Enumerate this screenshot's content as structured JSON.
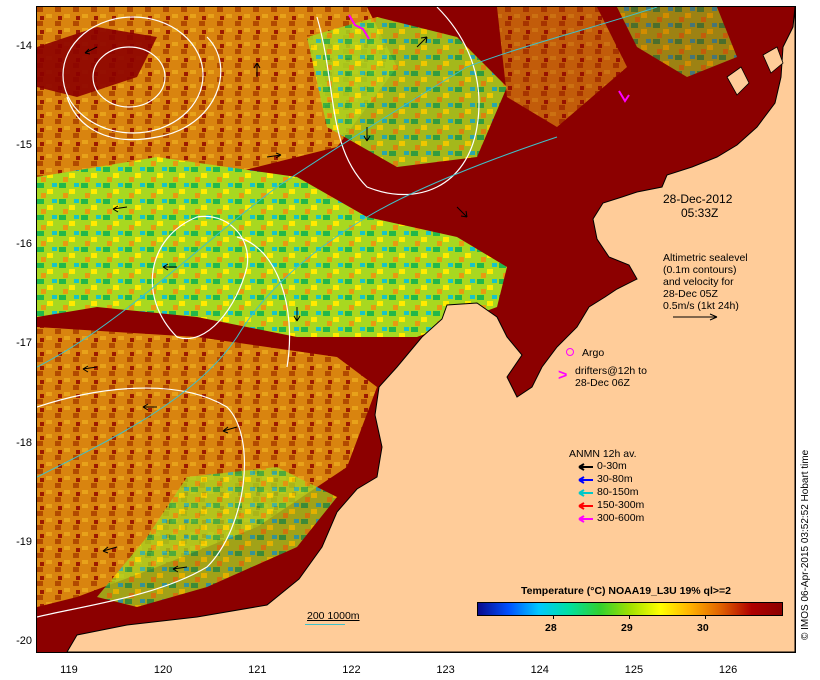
{
  "map": {
    "lat_ticks": [
      "-14",
      "-15",
      "-16",
      "-17",
      "-18",
      "-19",
      "-20"
    ],
    "lon_ticks": [
      "119",
      "120",
      "121",
      "122",
      "123",
      "124",
      "125",
      "126"
    ],
    "lat_range": [
      -20.1,
      -13.6
    ],
    "lon_range": [
      118.65,
      126.7
    ],
    "colors": {
      "land": "#ffcc99",
      "frame": "#000000",
      "contour": "#ffffff",
      "isobath": "#3fc1c9",
      "argo": "#ff00ff",
      "drifter": "#ff00ff"
    }
  },
  "annotations": {
    "date": "28-Dec-2012",
    "time": "05:33Z",
    "altimetry_lines": [
      "Altimetric sealevel",
      "(0.1m contours)",
      "and velocity for",
      "28-Dec 05Z",
      "0.5m/s (1kt 24h)"
    ],
    "argo_label": "Argo",
    "drifters_lines": [
      "drifters@12h to",
      "28-Dec 06Z"
    ],
    "anmn_title": "ANMN 12h av.",
    "anmn_items": [
      {
        "label": "0-30m",
        "color": "#000000"
      },
      {
        "label": "30-80m",
        "color": "#0000ff"
      },
      {
        "label": "80-150m",
        "color": "#00c8c8"
      },
      {
        "label": "150-300m",
        "color": "#ff0000"
      },
      {
        "label": "300-600m",
        "color": "#ff00ff"
      }
    ],
    "isobath_label": "200  1000m",
    "side_credit": "© IMOS 06-Apr-2015 03:52:52 Hobart time"
  },
  "colorbar": {
    "title": "Temperature (°C) NOAA19_L3U 19% ql>=2",
    "ticks": [
      "28",
      "29",
      "30"
    ],
    "range": [
      27.0,
      31.0
    ],
    "tick_values": [
      28,
      29,
      30
    ],
    "stops": [
      "#0a0a8c",
      "#0050ff",
      "#00c8ff",
      "#00e0a0",
      "#30d030",
      "#a0e000",
      "#ffff00",
      "#ffb000",
      "#e06000",
      "#b00000",
      "#8c0000"
    ]
  }
}
